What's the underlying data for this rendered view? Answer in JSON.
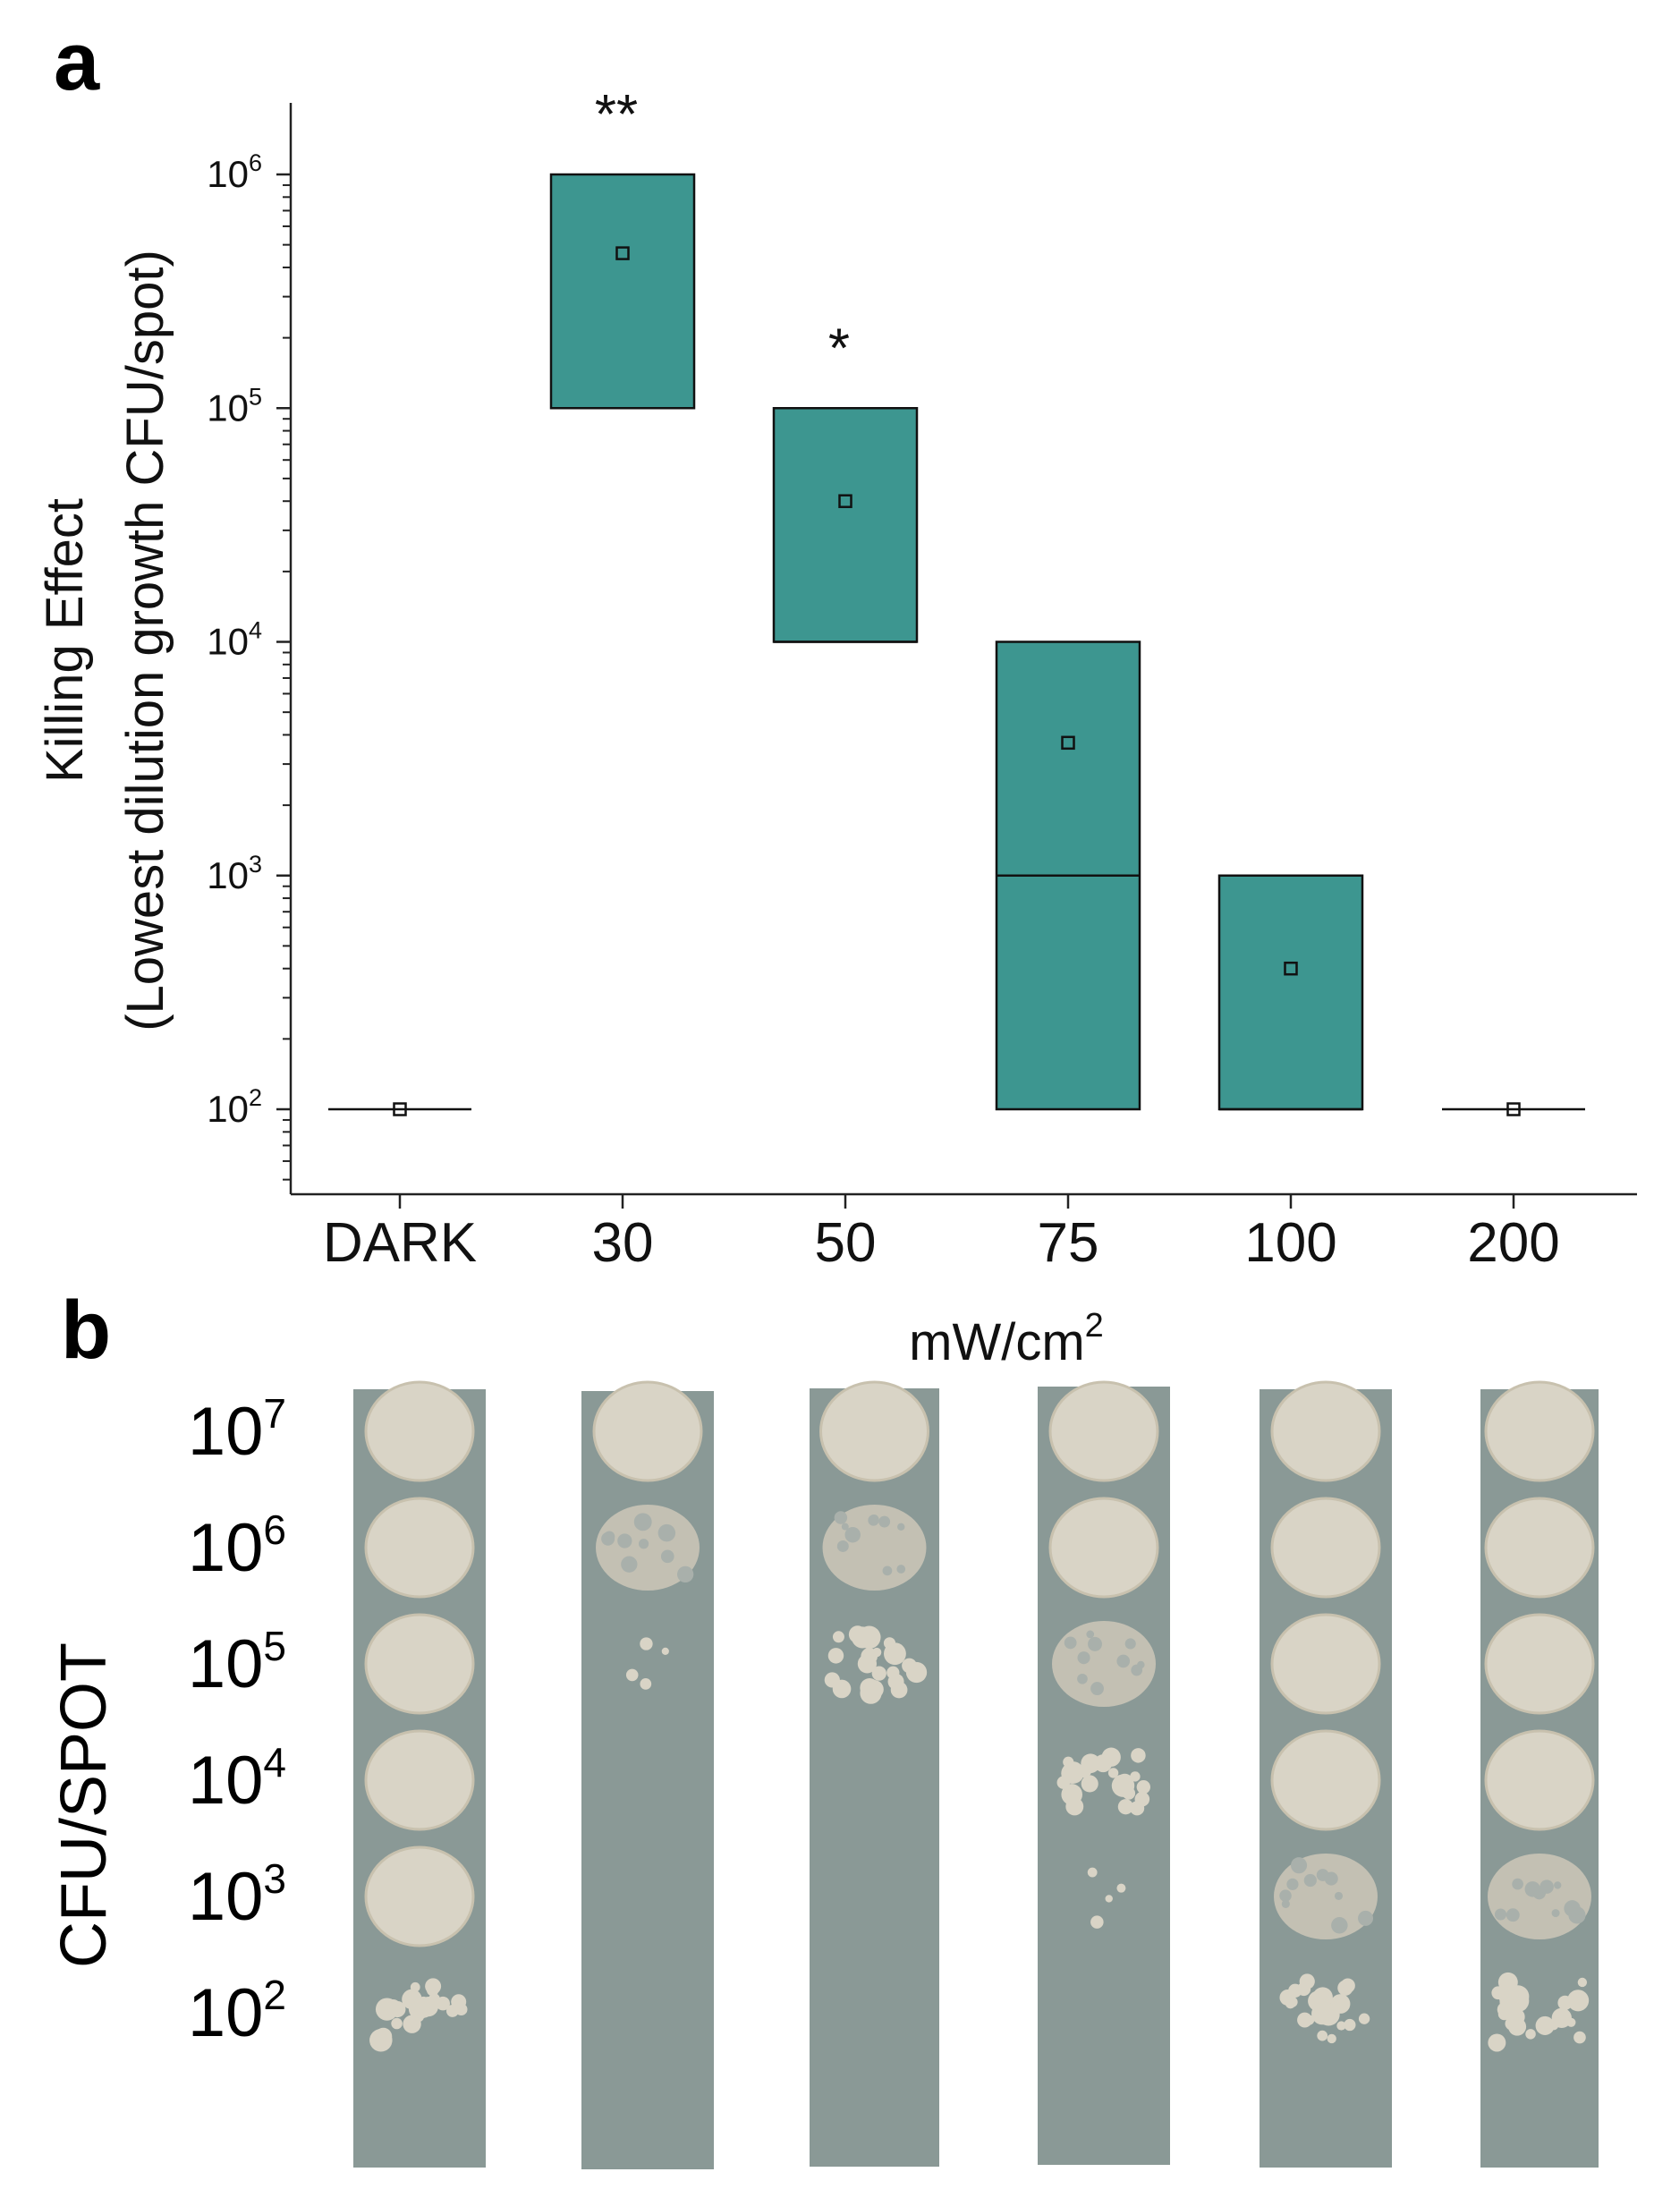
{
  "panels": {
    "a": "a",
    "b": "b"
  },
  "chart_data": {
    "type": "box",
    "ylog": true,
    "ylim": [
      50,
      3000000
    ],
    "ylabel_line1": "Killing Effect",
    "ylabel_line2": "(Lowest dilution growth CFU/spot)",
    "xlabel": "mW/cm",
    "xlabel_sup": "2",
    "ytick_base": "10",
    "yticks": [
      {
        "value": 100,
        "exp": "2"
      },
      {
        "value": 1000,
        "exp": "3"
      },
      {
        "value": 10000,
        "exp": "4"
      },
      {
        "value": 100000,
        "exp": "5"
      },
      {
        "value": 1000000,
        "exp": "6"
      }
    ],
    "categories": [
      "DARK",
      "30",
      "50",
      "75",
      "100",
      "200"
    ],
    "boxes": [
      {
        "category": "DARK",
        "q1": 100,
        "median": 100,
        "q3": 100,
        "mean": 100,
        "significance": ""
      },
      {
        "category": "30",
        "q1": 100000,
        "median": 100000,
        "q3": 1000000,
        "mean": 460000,
        "significance": "**"
      },
      {
        "category": "50",
        "q1": 10000,
        "median": 10000,
        "q3": 100000,
        "mean": 40000,
        "significance": "*"
      },
      {
        "category": "75",
        "q1": 100,
        "median": 1000,
        "q3": 10000,
        "mean": 3700,
        "significance": ""
      },
      {
        "category": "100",
        "q1": 100,
        "median": 100,
        "q3": 1000,
        "mean": 400,
        "significance": ""
      },
      {
        "category": "200",
        "q1": 100,
        "median": 100,
        "q3": 100,
        "mean": 100,
        "significance": ""
      }
    ],
    "box_color": "#3d9690"
  },
  "plate": {
    "ylabel": "CFU/SPOT",
    "row_base": "10",
    "rows": [
      {
        "exp": "7"
      },
      {
        "exp": "6"
      },
      {
        "exp": "5"
      },
      {
        "exp": "4"
      },
      {
        "exp": "3"
      },
      {
        "exp": "2"
      }
    ],
    "colors": {
      "background": "#8a9996",
      "spot": "#d9d4c6"
    },
    "strips": [
      {
        "condition": "DARK",
        "spots": [
          "full",
          "full",
          "full",
          "full",
          "full",
          "colonies"
        ]
      },
      {
        "condition": "30",
        "spots": [
          "full",
          "partial",
          "few",
          "none",
          "none",
          "none"
        ]
      },
      {
        "condition": "50",
        "spots": [
          "full",
          "partial",
          "colonies",
          "none",
          "none",
          "none"
        ]
      },
      {
        "condition": "75",
        "spots": [
          "full",
          "full",
          "partial",
          "colonies",
          "few",
          "none"
        ]
      },
      {
        "condition": "100",
        "spots": [
          "full",
          "full",
          "full",
          "full",
          "partial",
          "colonies"
        ]
      },
      {
        "condition": "200",
        "spots": [
          "full",
          "full",
          "full",
          "full",
          "partial",
          "colonies"
        ]
      }
    ]
  }
}
